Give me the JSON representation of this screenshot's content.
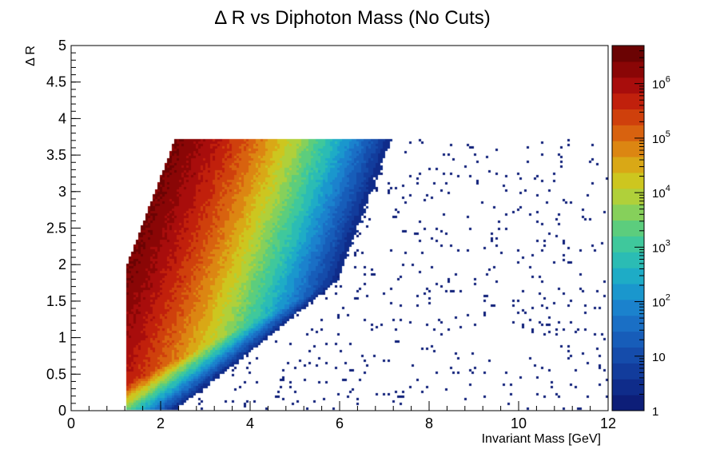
{
  "chart_data": {
    "type": "heatmap",
    "title": "Δ R vs Diphoton Mass (No Cuts)",
    "xlabel": "Invariant Mass [GeV]",
    "ylabel": "Δ R",
    "xlim": [
      0,
      12
    ],
    "ylim": [
      0,
      5
    ],
    "x_ticks": [
      "0",
      "2",
      "4",
      "6",
      "8",
      "10",
      "12"
    ],
    "y_ticks": [
      "0",
      "0.5",
      "1",
      "1.5",
      "2",
      "2.5",
      "3",
      "3.5",
      "4",
      "4.5",
      "5"
    ],
    "z_scale": "log",
    "zlim": [
      1,
      5000000
    ],
    "z_ticks": [
      {
        "value": 1,
        "base": "1",
        "exp": ""
      },
      {
        "value": 10,
        "base": "10",
        "exp": ""
      },
      {
        "value": 100,
        "base": "10",
        "exp": "2"
      },
      {
        "value": 1000,
        "base": "10",
        "exp": "3"
      },
      {
        "value": 10000,
        "base": "10",
        "exp": "4"
      },
      {
        "value": 100000,
        "base": "10",
        "exp": "5"
      },
      {
        "value": 1000000,
        "base": "10",
        "exp": "6"
      }
    ],
    "palette": [
      "#0d1e78",
      "#0f2c8a",
      "#123c9c",
      "#154cab",
      "#175db9",
      "#1a6fc5",
      "#1b82cd",
      "#1a97cd",
      "#1eacc6",
      "#2bbcb4",
      "#3fc89c",
      "#5ccd7d",
      "#86d05b",
      "#b0d03a",
      "#cdc61f",
      "#d9a816",
      "#dc8612",
      "#d8620f",
      "#cf400c",
      "#c1200c",
      "#a80d0c",
      "#8a0606",
      "#6b0303"
    ],
    "grid": false,
    "legend": "color bar on right",
    "distribution": {
      "kinematic_edge": "dR_min approx 1.6 * m",
      "dR_max": 3.72,
      "notch": {
        "m_start": 1.22,
        "m_end": 2.02,
        "dR_low": 3.15
      },
      "peak_counts": 3000000,
      "peak_mass": 1.6,
      "sparse_tail_to": 12
    }
  }
}
